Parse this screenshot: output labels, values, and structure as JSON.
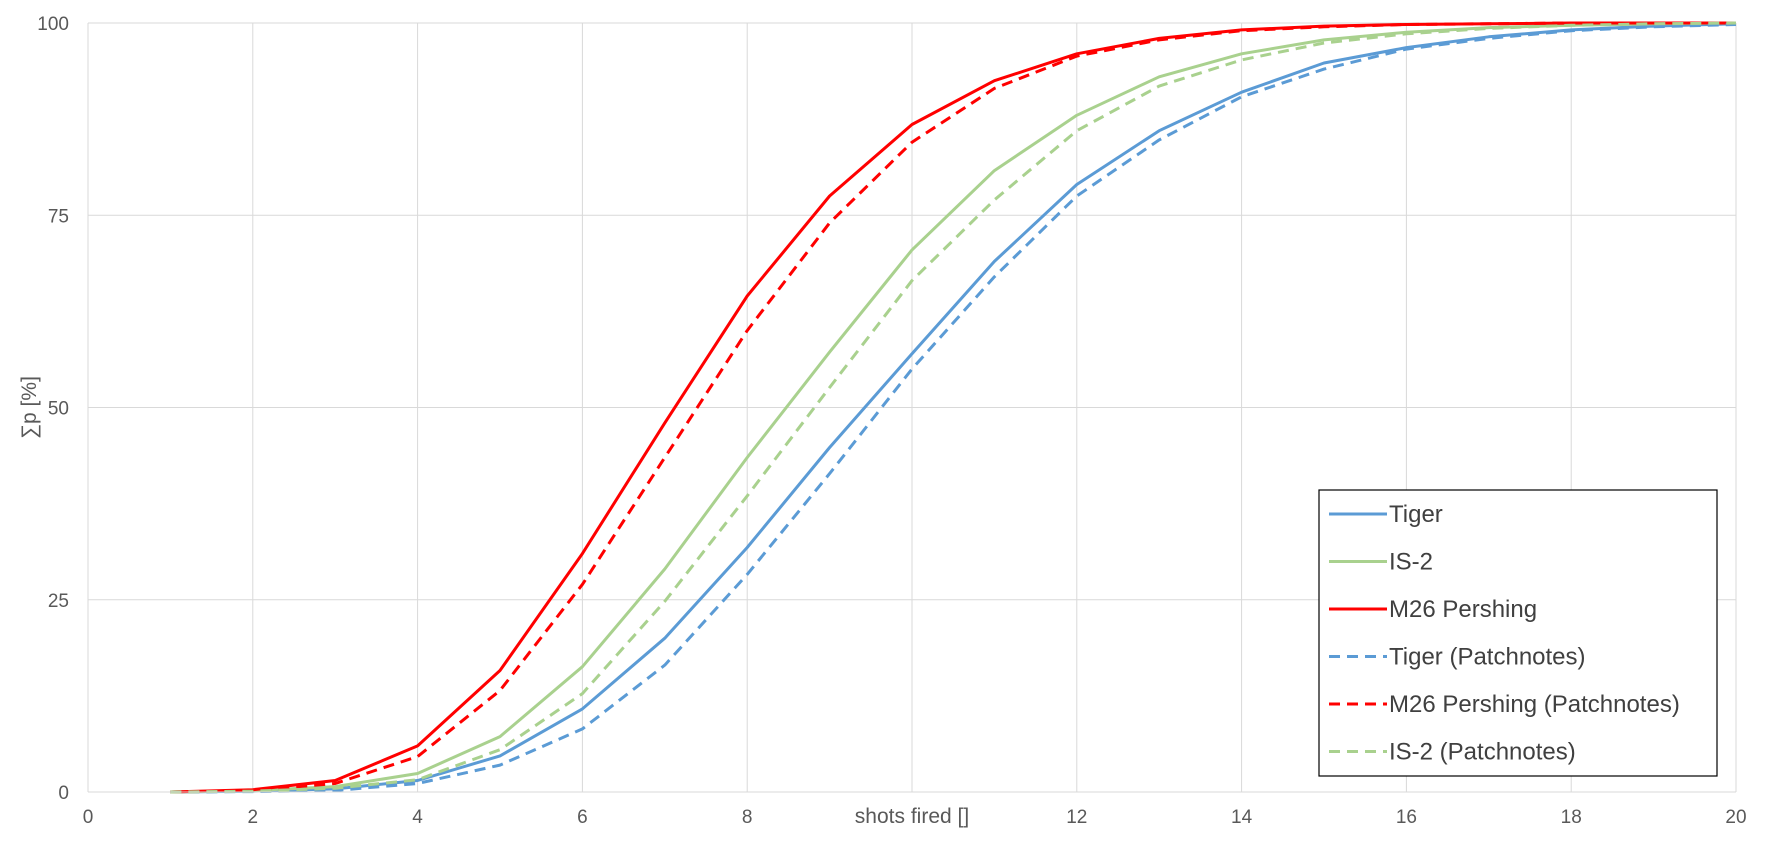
{
  "chart_data": {
    "type": "line",
    "title": "",
    "xlabel": "shots fired []",
    "ylabel": "∑p [%]",
    "xlim": [
      0,
      20
    ],
    "ylim": [
      0,
      100
    ],
    "x_ticks": [
      0,
      2,
      4,
      6,
      8,
      12,
      14,
      16,
      18,
      20
    ],
    "y_ticks": [
      0,
      25,
      50,
      75,
      100
    ],
    "grid": true,
    "legend_position": "bottom-right",
    "x": [
      1,
      2,
      3,
      4,
      5,
      6,
      7,
      8,
      9,
      10,
      11,
      12,
      13,
      14,
      15,
      16,
      17,
      18,
      19,
      20
    ],
    "series": [
      {
        "name": "Tiger",
        "color": "#5b9bd5",
        "dash": "solid",
        "values": [
          0,
          0.1,
          0.4,
          1.5,
          4.7,
          10.8,
          20,
          31.8,
          44.8,
          57,
          69,
          79,
          86,
          91,
          94.8,
          96.8,
          98.2,
          99.1,
          99.6,
          99.9
        ]
      },
      {
        "name": "IS-2",
        "color": "#a9d18e",
        "dash": "solid",
        "values": [
          0,
          0.2,
          0.7,
          2.4,
          7.2,
          16.3,
          29,
          43.5,
          57.2,
          70.5,
          80.8,
          88,
          93,
          96,
          97.8,
          98.8,
          99.4,
          99.7,
          99.9,
          100
        ]
      },
      {
        "name": "M26 Pershing",
        "color": "#ff0000",
        "dash": "solid",
        "values": [
          0,
          0.3,
          1.5,
          6,
          15.8,
          31,
          48,
          64.5,
          77.5,
          86.8,
          92.5,
          96,
          98,
          99.1,
          99.6,
          99.8,
          99.9,
          100,
          100,
          100
        ]
      },
      {
        "name": "Tiger (Patchnotes)",
        "color": "#5b9bd5",
        "dash": "dashed",
        "values": [
          0,
          0.05,
          0.2,
          1.1,
          3.5,
          8.2,
          16.5,
          28.3,
          41.4,
          55,
          67,
          77.5,
          84.8,
          90.4,
          94,
          96.6,
          98,
          99,
          99.5,
          99.8
        ]
      },
      {
        "name": "M26 Pershing (Patchnotes)",
        "color": "#ff0000",
        "dash": "dashed",
        "values": [
          0,
          0.2,
          1.1,
          4.6,
          13.2,
          27,
          43.5,
          60,
          74,
          84.5,
          91.5,
          95.7,
          97.8,
          99,
          99.5,
          99.8,
          99.9,
          100,
          100,
          100
        ]
      },
      {
        "name": "IS-2 (Patchnotes)",
        "color": "#a9d18e",
        "dash": "dashed",
        "values": [
          0,
          0.1,
          0.5,
          1.6,
          5.5,
          12.8,
          24.8,
          38.5,
          52.6,
          66.5,
          77,
          86,
          91.8,
          95.2,
          97.4,
          98.6,
          99.3,
          99.7,
          99.9,
          100
        ]
      }
    ]
  }
}
